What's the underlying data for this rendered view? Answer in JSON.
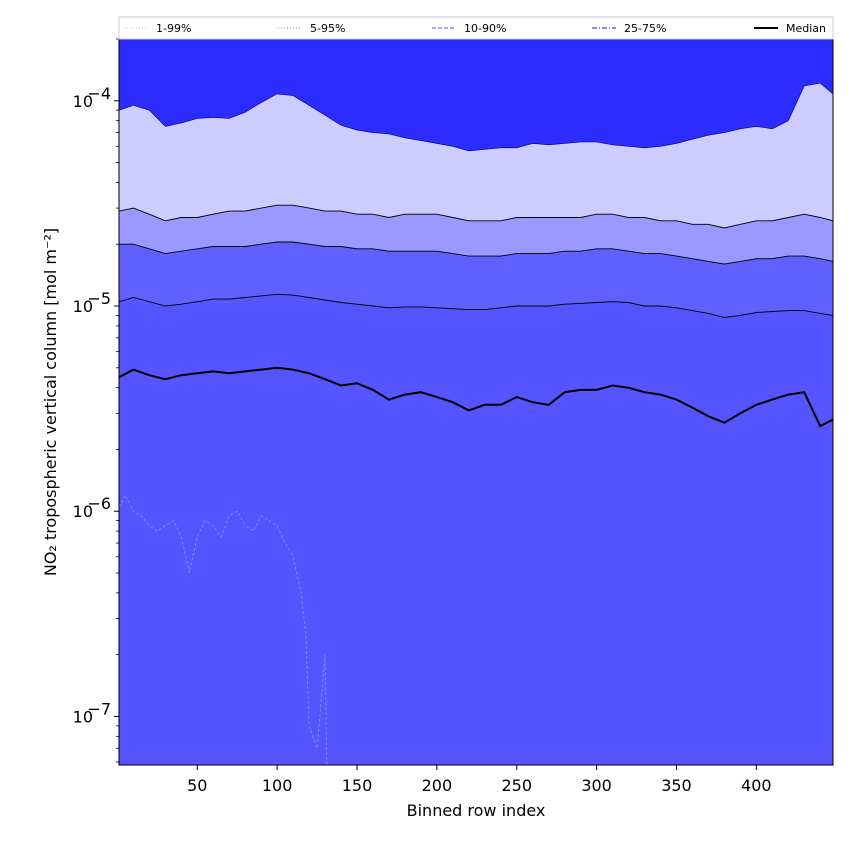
{
  "chart_data": {
    "type": "area",
    "title": "",
    "xlabel": "Binned row index",
    "ylabel": "NO₂ tropospheric vertical column [mol m⁻²]",
    "yscale": "log",
    "xlim": [
      1,
      448
    ],
    "ylim": [
      5.8e-08,
      0.0002
    ],
    "xticks": [
      50,
      100,
      150,
      200,
      250,
      300,
      350,
      400
    ],
    "xtick_labels": [
      "50",
      "100",
      "150",
      "200",
      "250",
      "300",
      "350",
      "400"
    ],
    "yticks": [
      1e-07,
      1e-06,
      1e-05,
      0.0001
    ],
    "ytick_labels": [
      {
        "base": "10",
        "exp": "−7"
      },
      {
        "base": "10",
        "exp": "−6"
      },
      {
        "base": "10",
        "exp": "−5"
      },
      {
        "base": "10",
        "exp": "−4"
      }
    ],
    "grid": false,
    "legend": {
      "placement": "top",
      "entries": [
        {
          "label": "1-99%",
          "color": "#ccccff",
          "style": "dotted"
        },
        {
          "label": "5-95%",
          "color": "#9999ff",
          "style": "dotted"
        },
        {
          "label": "10-90%",
          "color": "#7777ff",
          "style": "dashed"
        },
        {
          "label": "25-75%",
          "color": "#4444ee",
          "style": "dashdot"
        },
        {
          "label": "Median",
          "color": "#000000",
          "style": "solid"
        }
      ]
    },
    "x": [
      1,
      10,
      20,
      30,
      40,
      50,
      60,
      70,
      80,
      90,
      100,
      110,
      120,
      130,
      140,
      150,
      160,
      170,
      180,
      190,
      200,
      210,
      220,
      230,
      240,
      250,
      260,
      270,
      280,
      290,
      300,
      310,
      320,
      330,
      340,
      350,
      360,
      370,
      380,
      390,
      400,
      410,
      420,
      430,
      440,
      448
    ],
    "series": [
      {
        "name": "1-99%",
        "band": "upper",
        "fill": "#ccccff",
        "values": [
          9e-05,
          9.5e-05,
          9e-05,
          7.5e-05,
          7.8e-05,
          8.2e-05,
          8.3e-05,
          8.2e-05,
          8.8e-05,
          9.8e-05,
          0.000108,
          0.000106,
          9.5e-05,
          8.5e-05,
          7.6e-05,
          7.2e-05,
          7e-05,
          6.9e-05,
          6.6e-05,
          6.4e-05,
          6.2e-05,
          6e-05,
          5.7e-05,
          5.8e-05,
          5.9e-05,
          5.9e-05,
          6.2e-05,
          6.1e-05,
          6.2e-05,
          6.3e-05,
          6.3e-05,
          6.1e-05,
          6e-05,
          5.9e-05,
          6e-05,
          6.2e-05,
          6.5e-05,
          6.8e-05,
          7e-05,
          7.3e-05,
          7.5e-05,
          7.3e-05,
          8e-05,
          0.000118,
          0.000122,
          0.000108
        ]
      },
      {
        "name": "5-95%",
        "band": "upper",
        "fill": "#9999ff",
        "values": [
          2.9e-05,
          3e-05,
          2.8e-05,
          2.6e-05,
          2.7e-05,
          2.7e-05,
          2.8e-05,
          2.9e-05,
          2.9e-05,
          3e-05,
          3.1e-05,
          3.1e-05,
          3e-05,
          2.9e-05,
          2.9e-05,
          2.8e-05,
          2.8e-05,
          2.7e-05,
          2.8e-05,
          2.8e-05,
          2.8e-05,
          2.7e-05,
          2.6e-05,
          2.6e-05,
          2.6e-05,
          2.7e-05,
          2.7e-05,
          2.7e-05,
          2.7e-05,
          2.7e-05,
          2.8e-05,
          2.8e-05,
          2.7e-05,
          2.7e-05,
          2.6e-05,
          2.6e-05,
          2.5e-05,
          2.5e-05,
          2.4e-05,
          2.5e-05,
          2.6e-05,
          2.6e-05,
          2.7e-05,
          2.8e-05,
          2.7e-05,
          2.6e-05
        ]
      },
      {
        "name": "10-90%",
        "band": "upper",
        "fill": "#6060ff",
        "values": [
          2e-05,
          2e-05,
          1.9e-05,
          1.8e-05,
          1.85e-05,
          1.9e-05,
          1.95e-05,
          1.95e-05,
          1.95e-05,
          2e-05,
          2.05e-05,
          2.05e-05,
          2e-05,
          1.95e-05,
          1.95e-05,
          1.9e-05,
          1.9e-05,
          1.85e-05,
          1.85e-05,
          1.85e-05,
          1.85e-05,
          1.8e-05,
          1.75e-05,
          1.75e-05,
          1.75e-05,
          1.8e-05,
          1.8e-05,
          1.8e-05,
          1.85e-05,
          1.85e-05,
          1.9e-05,
          1.9e-05,
          1.85e-05,
          1.8e-05,
          1.8e-05,
          1.75e-05,
          1.7e-05,
          1.65e-05,
          1.6e-05,
          1.65e-05,
          1.7e-05,
          1.7e-05,
          1.75e-05,
          1.75e-05,
          1.7e-05,
          1.65e-05
        ]
      },
      {
        "name": "25-75%",
        "band": "upper",
        "fill": "#5555ff",
        "values": [
          1.05e-05,
          1.1e-05,
          1.05e-05,
          1e-05,
          1.02e-05,
          1.05e-05,
          1.08e-05,
          1.08e-05,
          1.1e-05,
          1.12e-05,
          1.14e-05,
          1.13e-05,
          1.1e-05,
          1.07e-05,
          1.04e-05,
          1.02e-05,
          1e-05,
          9.8e-06,
          9.9e-06,
          9.9e-06,
          9.8e-06,
          9.7e-06,
          9.6e-06,
          9.6e-06,
          9.8e-06,
          1e-05,
          1e-05,
          1e-05,
          1.02e-05,
          1.03e-05,
          1.04e-05,
          1.05e-05,
          1.04e-05,
          1e-05,
          1e-05,
          9.8e-06,
          9.5e-06,
          9.2e-06,
          8.8e-06,
          9e-06,
          9.3e-06,
          9.4e-06,
          9.5e-06,
          9.5e-06,
          9.2e-06,
          9e-06
        ]
      },
      {
        "name": "Median",
        "band": "line",
        "color": "#000000",
        "values": [
          4.5e-06,
          4.9e-06,
          4.6e-06,
          4.4e-06,
          4.6e-06,
          4.7e-06,
          4.8e-06,
          4.7e-06,
          4.8e-06,
          4.9e-06,
          5e-06,
          4.9e-06,
          4.7e-06,
          4.4e-06,
          4.1e-06,
          4.2e-06,
          3.9e-06,
          3.5e-06,
          3.7e-06,
          3.8e-06,
          3.6e-06,
          3.4e-06,
          3.1e-06,
          3.3e-06,
          3.3e-06,
          3.6e-06,
          3.4e-06,
          3.3e-06,
          3.8e-06,
          3.9e-06,
          3.9e-06,
          4.1e-06,
          4e-06,
          3.8e-06,
          3.7e-06,
          3.5e-06,
          3.2e-06,
          2.9e-06,
          2.7e-06,
          3e-06,
          3.3e-06,
          3.5e-06,
          3.7e-06,
          3.8e-06,
          2.6e-06,
          2.8e-06
        ]
      },
      {
        "name": "25-75%",
        "band": "lower",
        "fill": "#2c2cff",
        "x": [
          1,
          5,
          10,
          15,
          20,
          25,
          30,
          35,
          40,
          45,
          50,
          55,
          60,
          65,
          70,
          75,
          80,
          85,
          90,
          95,
          100,
          105,
          110,
          115,
          118,
          120,
          125,
          130,
          131
        ],
        "values": [
          1.05e-06,
          1.2e-06,
          1e-06,
          9.5e-07,
          8.5e-07,
          8e-07,
          8.5e-07,
          9e-07,
          7.5e-07,
          5e-07,
          7.5e-07,
          9e-07,
          8.5e-07,
          7.5e-07,
          9.5e-07,
          1e-06,
          8.5e-07,
          8e-07,
          9.5e-07,
          9e-07,
          8.5e-07,
          7e-07,
          6e-07,
          4e-07,
          2.5e-07,
          9e-08,
          7e-08,
          2e-07,
          5.8e-08
        ]
      }
    ]
  }
}
